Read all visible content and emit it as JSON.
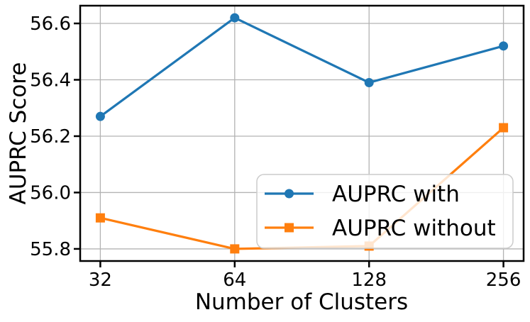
{
  "chart_data": {
    "type": "line",
    "x_tick_labels": [
      "32",
      "64",
      "128",
      "256"
    ],
    "x_values": [
      32,
      64,
      128,
      256
    ],
    "xlabel": "Number of Clusters",
    "ylabel": "AUPRC Score",
    "y_tick_labels": [
      "55.8",
      "56.0",
      "56.2",
      "56.4",
      "56.6"
    ],
    "yticks": [
      55.8,
      56.0,
      56.2,
      56.4,
      56.6
    ],
    "ylim": [
      55.757,
      56.663
    ],
    "grid": true,
    "legend_position": "lower-right-inside",
    "series": [
      {
        "name": "AUPRC with",
        "marker": "circle",
        "color": "#1f77b4",
        "values": [
          56.27,
          56.62,
          56.39,
          56.52
        ]
      },
      {
        "name": "AUPRC without",
        "marker": "square",
        "color": "#ff7f0e",
        "values": [
          55.91,
          55.8,
          55.81,
          56.23
        ]
      }
    ]
  },
  "colors": {
    "background": "#ffffff",
    "grid": "#b3b3b3",
    "spine": "#000000",
    "tick": "#000000",
    "legend_border": "#cccccc",
    "legend_background": "rgba(255,255,255,0.8)"
  }
}
